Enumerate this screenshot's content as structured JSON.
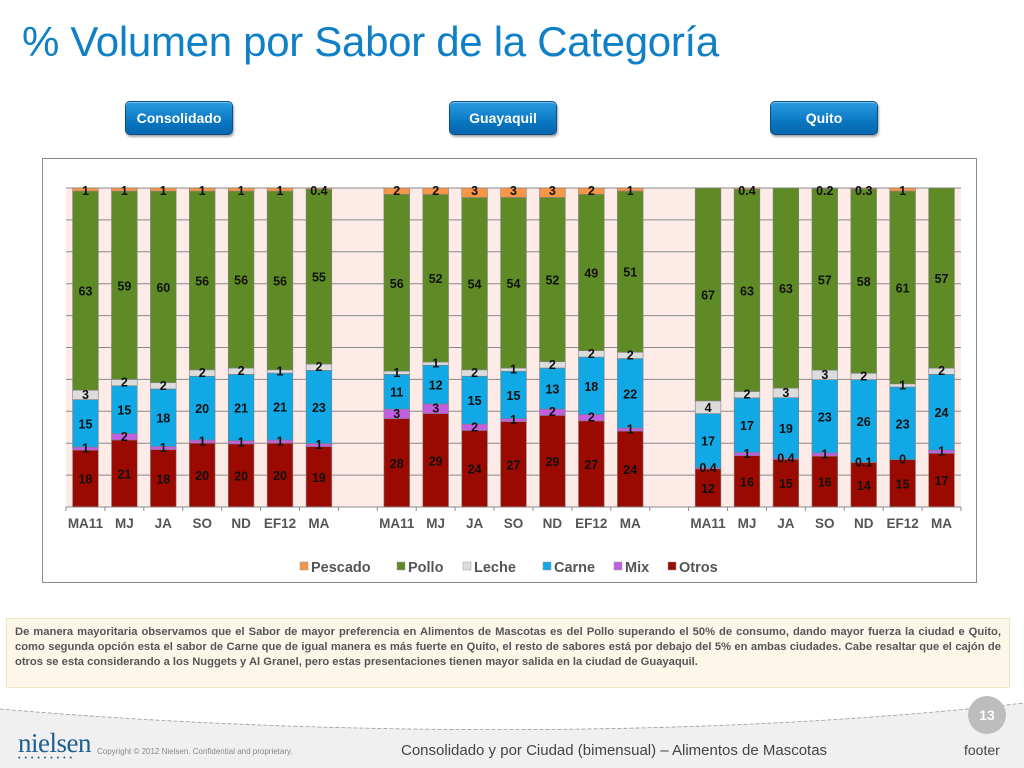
{
  "page": {
    "title": "% Volumen por Sabor de la Categoría",
    "tabs": [
      {
        "label": "Consolidado"
      },
      {
        "label": "Guayaquil"
      },
      {
        "label": "Quito"
      }
    ],
    "note": "De manera mayoritaria observamos que el Sabor de mayor preferencia en Alimentos de Mascotas es del Pollo superando el 50% de consumo, dando mayor fuerza la ciudad e Quito, como segunda opción esta el sabor de Carne que de igual manera es más fuerte en Quito, el resto de sabores está por debajo del 5% en ambas ciudades.  Cabe resaltar que el cajón de otros se esta considerando a los Nuggets y Al Granel, pero estas presentaciones tienen mayor salida en la ciudad de Guayaquil.",
    "footer": {
      "logo": "nielsen",
      "logo_dots": "•••••••••",
      "copyright": "Copyright © 2012 Nielsen. Confidential and proprietary.",
      "subtitle": "Consolidado y por Ciudad (bimensual) – Alimentos de Mascotas",
      "footer_label": "footer",
      "page_number": "13"
    }
  },
  "chart_data": {
    "type": "bar",
    "stacked": true,
    "percent_stacked": true,
    "title": "",
    "xlabel": "",
    "ylabel": "",
    "ylim": [
      0,
      100
    ],
    "grid": true,
    "legend_position": "bottom",
    "groups": [
      {
        "name": "Consolidado",
        "categories": [
          "MA11",
          "MJ",
          "JA",
          "SO",
          "ND",
          "EF12",
          "MA"
        ]
      },
      {
        "name": "Guayaquil",
        "categories": [
          "MA11",
          "MJ",
          "JA",
          "SO",
          "ND",
          "EF12",
          "MA"
        ]
      },
      {
        "name": "Quito",
        "categories": [
          "MA11",
          "MJ",
          "JA",
          "SO",
          "ND",
          "EF12",
          "MA"
        ]
      }
    ],
    "series_order_bottom_to_top": [
      "Otros",
      "Mix",
      "Carne",
      "Leche",
      "Pollo",
      "Pescado"
    ],
    "legend": [
      "Pescado",
      "Pollo",
      "Leche",
      "Carne",
      "Mix",
      "Otros"
    ],
    "colors": {
      "Pescado": "#f79646",
      "Pollo": "#5f8b26",
      "Leche": "#dcdcdc",
      "Carne": "#10a9e6",
      "Mix": "#c25ee0",
      "Otros": "#9b0a00"
    },
    "series": [
      {
        "name": "Otros",
        "values": [
          [
            18,
            21,
            18,
            20,
            20,
            20,
            19
          ],
          [
            28,
            29,
            24,
            27,
            29,
            27,
            24
          ],
          [
            12,
            16,
            15,
            16,
            14,
            15,
            17
          ]
        ]
      },
      {
        "name": "Mix",
        "values": [
          [
            1,
            2,
            1,
            1,
            1,
            1,
            1
          ],
          [
            3,
            3,
            2,
            1,
            2,
            2,
            1
          ],
          [
            0.4,
            1,
            0.4,
            1,
            0.1,
            0,
            1
          ]
        ]
      },
      {
        "name": "Carne",
        "values": [
          [
            15,
            15,
            18,
            20,
            21,
            21,
            23
          ],
          [
            11,
            12,
            15,
            15,
            13,
            18,
            22
          ],
          [
            17,
            17,
            19,
            23,
            26,
            23,
            24
          ]
        ]
      },
      {
        "name": "Leche",
        "values": [
          [
            3,
            2,
            2,
            2,
            2,
            1,
            2
          ],
          [
            1,
            1,
            2,
            1,
            2,
            2,
            2
          ],
          [
            4,
            2,
            3,
            3,
            2,
            1,
            2
          ]
        ]
      },
      {
        "name": "Pollo",
        "values": [
          [
            63,
            59,
            60,
            56,
            56,
            56,
            55
          ],
          [
            56,
            52,
            54,
            54,
            52,
            49,
            51
          ],
          [
            67,
            63,
            63,
            57,
            58,
            61,
            57
          ]
        ]
      },
      {
        "name": "Pescado",
        "values": [
          [
            1,
            1,
            1,
            1,
            1,
            1,
            0.4
          ],
          [
            2,
            2,
            3,
            3,
            3,
            2,
            1
          ],
          [
            null,
            0.4,
            null,
            0.2,
            0.3,
            1,
            null
          ]
        ]
      }
    ]
  }
}
